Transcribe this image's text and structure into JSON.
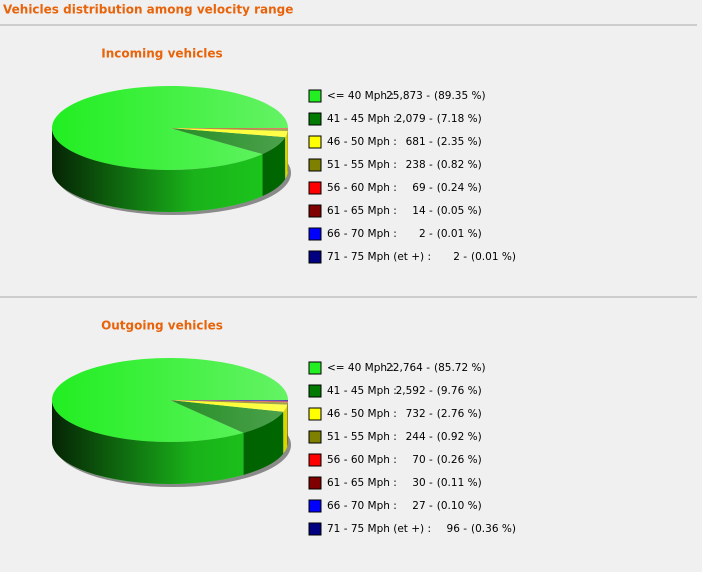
{
  "title": "Vehicles distribution among velocity range",
  "chart_data": [
    {
      "type": "pie",
      "title": "Incoming vehicles",
      "categories": [
        "<= 40 Mph :",
        "41 - 45 Mph :",
        "46 - 50 Mph :",
        "51 - 55 Mph :",
        "56 - 60 Mph :",
        "61 - 65 Mph :",
        "66 - 70 Mph :",
        "71 - 75 Mph (et +) :"
      ],
      "values": [
        25873,
        2079,
        681,
        238,
        69,
        14,
        2,
        2
      ],
      "value_labels": [
        "25,873 -",
        "2,079 -",
        "681 -",
        "238 -",
        "69 -",
        "14 -",
        "2 -",
        "2 -"
      ],
      "shares": [
        89.35,
        7.18,
        2.35,
        0.82,
        0.24,
        0.05,
        0.01,
        0.01
      ],
      "share_labels": [
        "(89.35 %)",
        "(7.18 %)",
        "(2.35 %)",
        "(0.82 %)",
        "(0.24 %)",
        "(0.05 %)",
        "(0.01 %)",
        "(0.01 %)"
      ],
      "colors": [
        "#22ee22",
        "#007a00",
        "#ffff00",
        "#808000",
        "#ff0000",
        "#800000",
        "#0000ff",
        "#000080"
      ]
    },
    {
      "type": "pie",
      "title": "Outgoing vehicles",
      "categories": [
        "<= 40 Mph :",
        "41 - 45 Mph :",
        "46 - 50 Mph :",
        "51 - 55 Mph :",
        "56 - 60 Mph :",
        "61 - 65 Mph :",
        "66 - 70 Mph :",
        "71 - 75 Mph (et +) :"
      ],
      "values": [
        22764,
        2592,
        732,
        244,
        70,
        30,
        27,
        96
      ],
      "value_labels": [
        "22,764 -",
        "2,592 -",
        "732 -",
        "244 -",
        "70 -",
        "30 -",
        "27 -",
        "96 -"
      ],
      "shares": [
        85.72,
        9.76,
        2.76,
        0.92,
        0.26,
        0.11,
        0.1,
        0.36
      ],
      "share_labels": [
        "(85.72 %)",
        "(9.76 %)",
        "(2.76 %)",
        "(0.92 %)",
        "(0.26 %)",
        "(0.11 %)",
        "(0.10 %)",
        "(0.36 %)"
      ],
      "colors": [
        "#22ee22",
        "#007a00",
        "#ffff00",
        "#808000",
        "#ff0000",
        "#800000",
        "#0000ff",
        "#000080"
      ]
    }
  ]
}
